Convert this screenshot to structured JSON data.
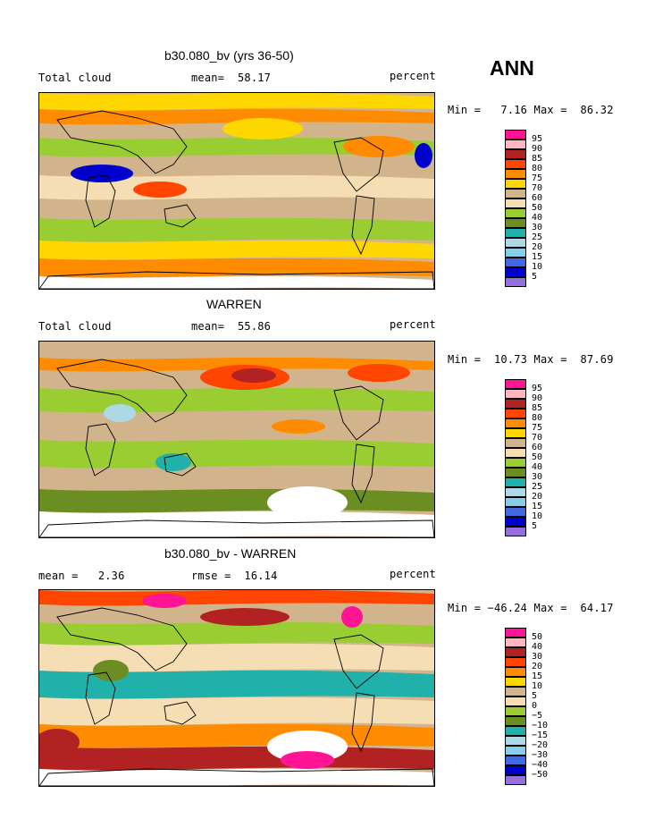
{
  "season": "ANN",
  "panels": [
    {
      "title": "b30.080_bv (yrs 36-50)",
      "left_label": "Total cloud",
      "center_label": "mean=  58.17",
      "right_label": "percent",
      "minmax": "Min =   7.16 Max =  86.32",
      "legend": {
        "colors": [
          "#ff1493",
          "#ffb6c1",
          "#b22222",
          "#ff4500",
          "#ff8c00",
          "#ffd700",
          "#d2b48c",
          "#f5deb3",
          "#9acd32",
          "#6b8e23",
          "#20b2aa",
          "#add8e6",
          "#87ceeb",
          "#4169e1",
          "#0000cd",
          "#9370db"
        ],
        "labels": [
          "95",
          "90",
          "85",
          "80",
          "75",
          "70",
          "60",
          "50",
          "40",
          "30",
          "25",
          "20",
          "15",
          "10",
          "5"
        ]
      }
    },
    {
      "title": "WARREN",
      "left_label": "Total cloud",
      "center_label": "mean=  55.86",
      "right_label": "percent",
      "minmax": "Min =  10.73 Max =  87.69",
      "legend": {
        "colors": [
          "#ff1493",
          "#ffb6c1",
          "#b22222",
          "#ff4500",
          "#ff8c00",
          "#ffd700",
          "#d2b48c",
          "#f5deb3",
          "#9acd32",
          "#6b8e23",
          "#20b2aa",
          "#add8e6",
          "#87ceeb",
          "#4169e1",
          "#0000cd",
          "#9370db"
        ],
        "labels": [
          "95",
          "90",
          "85",
          "80",
          "75",
          "70",
          "60",
          "50",
          "40",
          "30",
          "25",
          "20",
          "15",
          "10",
          "5"
        ]
      }
    },
    {
      "title": "b30.080_bv - WARREN",
      "left_label": "mean =   2.36",
      "center_label": "rmse =  16.14",
      "right_label": "percent",
      "minmax": "Min = −46.24 Max =  64.17",
      "legend": {
        "colors": [
          "#ff1493",
          "#ffb6c1",
          "#b22222",
          "#ff4500",
          "#ff8c00",
          "#ffd700",
          "#d2b48c",
          "#f5deb3",
          "#9acd32",
          "#6b8e23",
          "#20b2aa",
          "#add8e6",
          "#87ceeb",
          "#4169e1",
          "#0000cd",
          "#9370db"
        ],
        "labels": [
          "50",
          "40",
          "30",
          "20",
          "15",
          "10",
          "5",
          "0",
          "−5",
          "−10",
          "−15",
          "−20",
          "−30",
          "−40",
          "−50"
        ]
      }
    }
  ]
}
